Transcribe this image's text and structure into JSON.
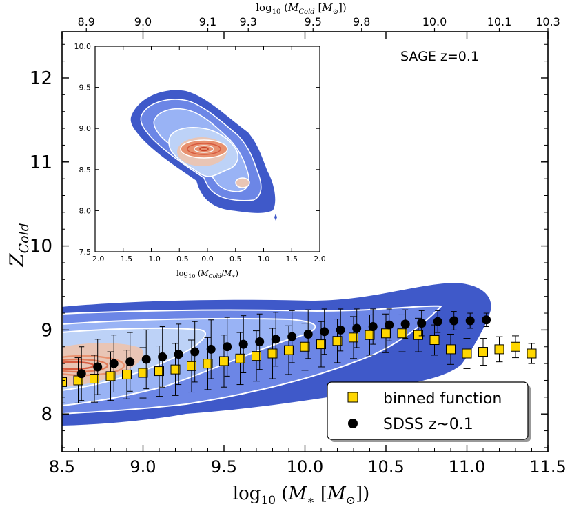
{
  "chart_data": {
    "type": "scatter",
    "annotation": "SAGE z=0.1",
    "xlabel": "log10(M* [Msun])",
    "ylabel": "Z_Cold",
    "top_axis_label": "log10(M_Cold [Msun])",
    "xlim": [
      8.5,
      11.5
    ],
    "ylim": [
      7.55,
      12.55
    ],
    "x_ticks": [
      8.5,
      9.0,
      9.5,
      10.0,
      10.5,
      11.0,
      11.5
    ],
    "x_tick_labels": [
      "8.5",
      "9.0",
      "9.5",
      "10.0",
      "10.5",
      "11.0",
      "11.5"
    ],
    "y_ticks": [
      8,
      9,
      10,
      11,
      12
    ],
    "y_tick_labels": [
      "8",
      "9",
      "10",
      "11",
      "12"
    ],
    "top_ticks": [
      {
        "label": "8.9",
        "at": 8.65
      },
      {
        "label": "9.0",
        "at": 9.0
      },
      {
        "label": "9.1",
        "at": 9.4
      },
      {
        "label": "9.3",
        "at": 9.65
      },
      {
        "label": "9.5",
        "at": 10.05
      },
      {
        "label": "9.8",
        "at": 10.35
      },
      {
        "label": "10.0",
        "at": 10.8
      },
      {
        "label": "10.1",
        "at": 11.2
      },
      {
        "label": "10.3",
        "at": 11.5
      }
    ],
    "legend": [
      {
        "label": "binned function",
        "marker": "square",
        "color": "#ffd700"
      },
      {
        "label": "SDSS z~0.1",
        "marker": "circle",
        "color": "#000000"
      }
    ],
    "series": [
      {
        "name": "binned function",
        "marker": "square",
        "color": "#ffd700",
        "x": [
          8.5,
          8.6,
          8.7,
          8.8,
          8.9,
          9.0,
          9.1,
          9.2,
          9.3,
          9.4,
          9.5,
          9.6,
          9.7,
          9.8,
          9.9,
          10.0,
          10.1,
          10.2,
          10.3,
          10.4,
          10.5,
          10.6,
          10.7,
          10.8,
          10.9,
          11.0,
          11.1,
          11.2,
          11.3,
          11.4
        ],
        "y": [
          8.38,
          8.4,
          8.42,
          8.45,
          8.47,
          8.49,
          8.51,
          8.53,
          8.57,
          8.6,
          8.63,
          8.66,
          8.69,
          8.72,
          8.76,
          8.8,
          8.83,
          8.87,
          8.91,
          8.94,
          8.96,
          8.96,
          8.94,
          8.88,
          8.77,
          8.72,
          8.74,
          8.77,
          8.8,
          8.72
        ],
        "err": [
          0.25,
          0.27,
          0.28,
          0.29,
          0.29,
          0.3,
          0.3,
          0.31,
          0.31,
          0.31,
          0.31,
          0.31,
          0.3,
          0.3,
          0.29,
          0.28,
          0.27,
          0.26,
          0.25,
          0.24,
          0.23,
          0.22,
          0.2,
          0.18,
          0.18,
          0.18,
          0.16,
          0.15,
          0.13,
          0.12
        ]
      },
      {
        "name": "SDSS z~0.1",
        "marker": "circle",
        "color": "#000000",
        "x": [
          8.62,
          8.72,
          8.82,
          8.92,
          9.02,
          9.12,
          9.22,
          9.32,
          9.42,
          9.52,
          9.62,
          9.72,
          9.82,
          9.92,
          10.02,
          10.12,
          10.22,
          10.32,
          10.42,
          10.52,
          10.62,
          10.72,
          10.82,
          10.92,
          11.02,
          11.12
        ],
        "y": [
          8.48,
          8.56,
          8.6,
          8.62,
          8.65,
          8.68,
          8.71,
          8.74,
          8.77,
          8.8,
          8.83,
          8.86,
          8.89,
          8.92,
          8.95,
          8.98,
          9.0,
          9.02,
          9.04,
          9.06,
          9.07,
          9.08,
          9.1,
          9.11,
          9.11,
          9.12
        ],
        "err": [
          0.32,
          0.33,
          0.34,
          0.35,
          0.35,
          0.36,
          0.36,
          0.36,
          0.35,
          0.35,
          0.34,
          0.33,
          0.32,
          0.31,
          0.29,
          0.27,
          0.25,
          0.23,
          0.21,
          0.19,
          0.17,
          0.15,
          0.13,
          0.11,
          0.09,
          0.08
        ]
      }
    ],
    "inset": {
      "type": "contour",
      "xlabel": "log10(M_Cold/M*)",
      "xlim": [
        -2.0,
        2.0
      ],
      "ylim": [
        7.5,
        10.0
      ],
      "x_ticks": [
        -2.0,
        -1.5,
        -1.0,
        -0.5,
        0.0,
        0.5,
        1.0,
        1.5,
        2.0
      ],
      "x_tick_labels": [
        "−2.0",
        "−1.5",
        "−1.0",
        "−0.5",
        "0.0",
        "0.5",
        "1.0",
        "1.5",
        "2.0"
      ],
      "y_ticks": [
        7.5,
        8.0,
        8.5,
        9.0,
        9.5,
        10.0
      ],
      "y_tick_labels": [
        "7.5",
        "8.0",
        "8.5",
        "9.0",
        "9.5",
        "10.0"
      ]
    },
    "contour_colors": [
      "#3f59c9",
      "#6c86e6",
      "#99b3f5",
      "#bdd2f7",
      "#e9c5b5",
      "#e8916f",
      "#d75a3f"
    ]
  }
}
